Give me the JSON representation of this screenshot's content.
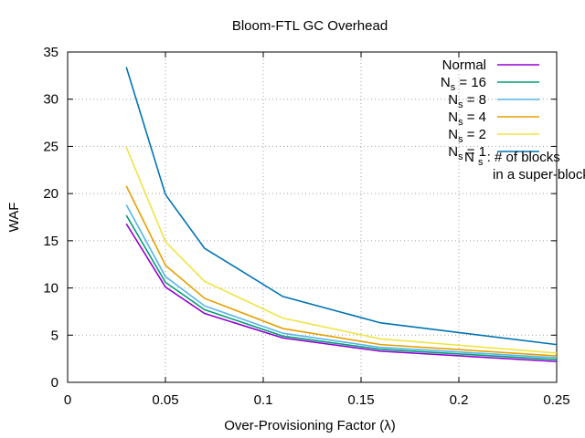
{
  "chart_data": {
    "type": "line",
    "title": "Bloom-FTL GC Overhead",
    "xlabel": "Over-Provisioning Factor (λ)",
    "ylabel": "WAF",
    "xlim": [
      0,
      0.25
    ],
    "ylim": [
      0,
      35
    ],
    "x_ticks": [
      0,
      0.05,
      0.1,
      0.15,
      0.2,
      0.25
    ],
    "x_tick_labels": [
      "0",
      "0.05",
      "0.1",
      "0.15",
      "0.2",
      "0.25"
    ],
    "y_ticks": [
      0,
      5,
      10,
      15,
      20,
      25,
      30,
      35
    ],
    "y_tick_labels": [
      "0",
      "5",
      "10",
      "15",
      "20",
      "25",
      "30",
      "35"
    ],
    "grid": true,
    "legend_position": "top-right",
    "annotation": {
      "symbol": "N",
      "subscript": "s",
      "line1": ": # of blocks",
      "line2": "in a super-block"
    },
    "x": [
      0.03,
      0.05,
      0.07,
      0.11,
      0.16,
      0.25
    ],
    "series": [
      {
        "name": "Normal",
        "label_main": "Normal",
        "label_sub": "",
        "label_suffix": "",
        "color": "#9400d3",
        "values": [
          16.8,
          10.1,
          7.3,
          4.7,
          3.3,
          2.2
        ]
      },
      {
        "name": "Ns = 16",
        "label_main": "N",
        "label_sub": "s",
        "label_suffix": " = 16",
        "color": "#009e73",
        "values": [
          17.7,
          10.6,
          7.7,
          4.9,
          3.5,
          2.4
        ]
      },
      {
        "name": "Ns = 8",
        "label_main": "N",
        "label_sub": "s",
        "label_suffix": " = 8",
        "color": "#56b4e9",
        "values": [
          18.8,
          11.2,
          8.1,
          5.2,
          3.7,
          2.6
        ]
      },
      {
        "name": "Ns = 4",
        "label_main": "N",
        "label_sub": "s",
        "label_suffix": " = 4",
        "color": "#e69f00",
        "values": [
          20.8,
          12.4,
          8.9,
          5.7,
          4.0,
          2.8
        ]
      },
      {
        "name": "Ns = 2",
        "label_main": "N",
        "label_sub": "s",
        "label_suffix": " = 2",
        "color": "#f0e442",
        "values": [
          24.9,
          14.9,
          10.7,
          6.8,
          4.6,
          3.1
        ]
      },
      {
        "name": "Ns = 1",
        "label_main": "N",
        "label_sub": "s",
        "label_suffix": " = 1",
        "color": "#0072b2",
        "values": [
          33.4,
          19.9,
          14.2,
          9.1,
          6.3,
          4.0
        ]
      }
    ]
  }
}
